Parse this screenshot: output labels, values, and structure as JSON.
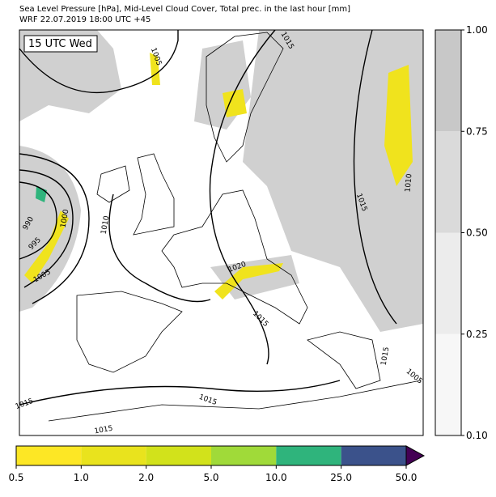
{
  "header": {
    "title": "Sea Level Pressure [hPa], Mid-Level Cloud Cover, Total prec. in the last hour [mm]",
    "subtitle": "WRF 22.07.2019 18:00 UTC +45"
  },
  "map": {
    "time_label": "15 UTC Wed",
    "contour_labels": [
      "1015",
      "1005",
      "990",
      "995",
      "1000",
      "1005",
      "1010",
      "1020",
      "1015",
      "1015",
      "1010",
      "1015",
      "1005",
      "1015",
      "1015",
      "1015"
    ]
  },
  "cloud_cover": {
    "ticks": [
      "0.10",
      "0.25",
      "0.50",
      "0.75",
      "1.00"
    ],
    "colors": [
      "#f7f7f7",
      "#ececec",
      "#dadada",
      "#c8c8c8"
    ]
  },
  "precipitation": {
    "ticks": [
      "0.5",
      "1.0",
      "2.0",
      "5.0",
      "10.0",
      "25.0",
      "50.0"
    ],
    "colors": [
      "#fde725",
      "#e9e31d",
      "#d2e21b",
      "#a0da39",
      "#2fb47c",
      "#3b528b"
    ],
    "extend_color": "#440154"
  }
}
